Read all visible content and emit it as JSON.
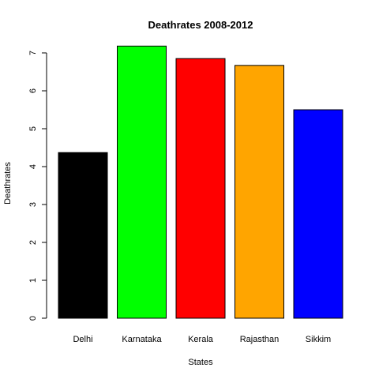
{
  "chart_data": {
    "type": "bar",
    "title": "Deathrates 2008-2012",
    "xlabel": "States",
    "ylabel": "Deathrates",
    "categories": [
      "Delhi",
      "Karnataka",
      "Kerala",
      "Rajasthan",
      "Sikkim"
    ],
    "values": [
      4.37,
      7.18,
      6.85,
      6.67,
      5.5
    ],
    "colors": [
      "#000000",
      "#00ff00",
      "#ff0000",
      "#ffa500",
      "#0000ff"
    ],
    "yticks": [
      0,
      1,
      2,
      3,
      4,
      5,
      6,
      7
    ],
    "ylim": [
      0,
      7.5
    ],
    "grid": false,
    "legend": "none"
  }
}
